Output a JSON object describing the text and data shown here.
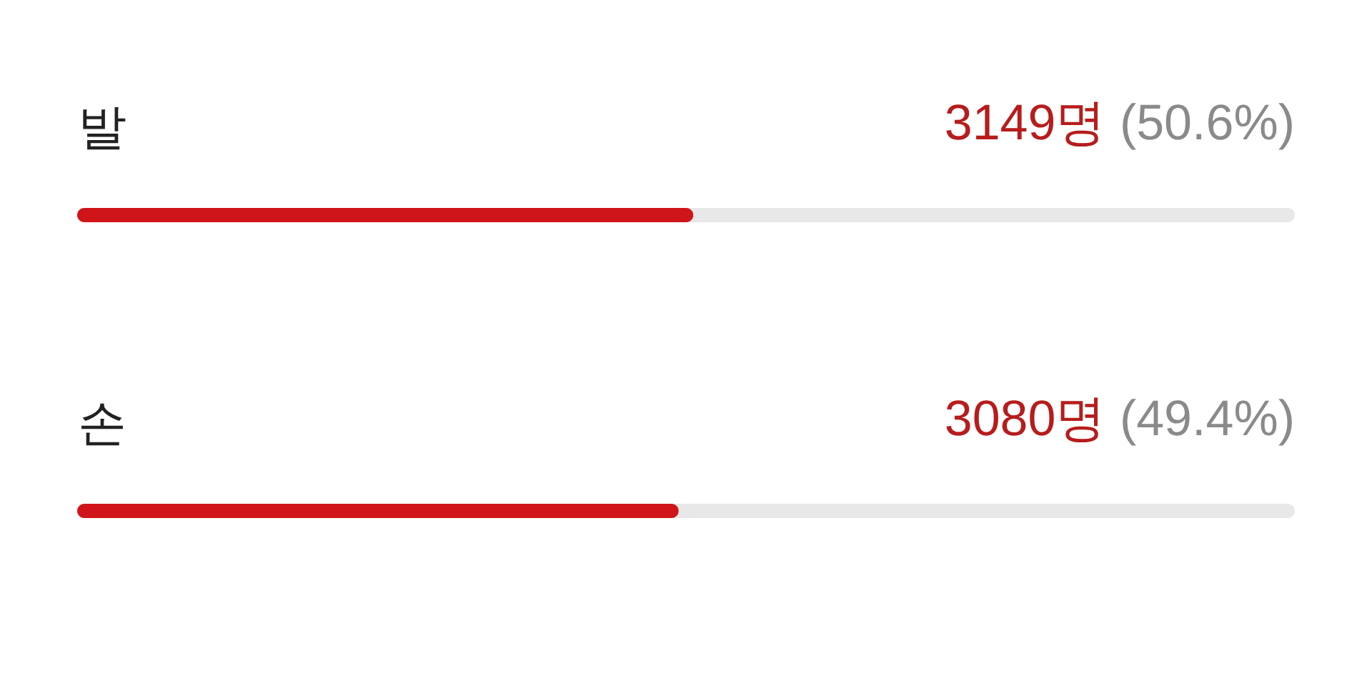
{
  "chart_data": {
    "type": "bar",
    "orientation": "horizontal",
    "categories": [
      "발",
      "손"
    ],
    "values": [
      50.6,
      49.4
    ],
    "color": "#d0151a",
    "value_labels": [
      "3149명 (50.6%)",
      "3080명 (49.4%)"
    ],
    "xlim": [
      0,
      100
    ],
    "tick_labels": "y"
  }
}
